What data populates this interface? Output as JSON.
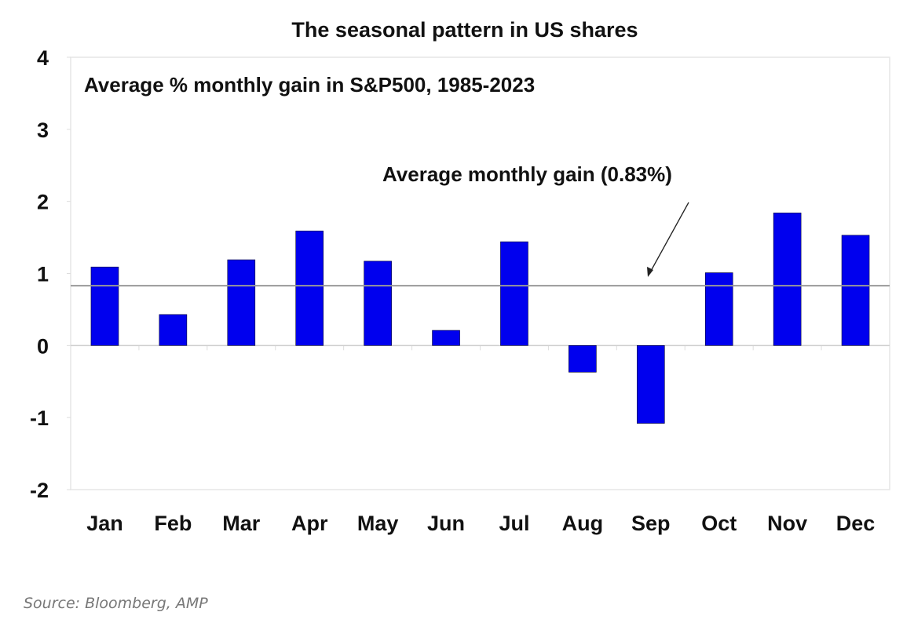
{
  "chart_data": {
    "type": "bar",
    "title": "The seasonal pattern in US shares",
    "subtitle": "Average % monthly gain in S&P500, 1985-2023",
    "categories": [
      "Jan",
      "Feb",
      "Mar",
      "Apr",
      "May",
      "Jun",
      "Jul",
      "Aug",
      "Sep",
      "Oct",
      "Nov",
      "Dec"
    ],
    "values": [
      1.09,
      0.43,
      1.19,
      1.59,
      1.17,
      0.21,
      1.44,
      -0.37,
      -1.08,
      1.01,
      1.84,
      1.53
    ],
    "ylim": [
      -2,
      4
    ],
    "yticks": [
      4,
      3,
      2,
      1,
      0,
      -1,
      -2
    ],
    "xlabel": "",
    "ylabel": "",
    "grid": false,
    "bar_color": "#0000ee",
    "reference_line": {
      "value": 0.83,
      "label": "Average monthly gain (0.83%)",
      "color": "#999999"
    }
  },
  "source": "Source: Bloomberg, AMP"
}
